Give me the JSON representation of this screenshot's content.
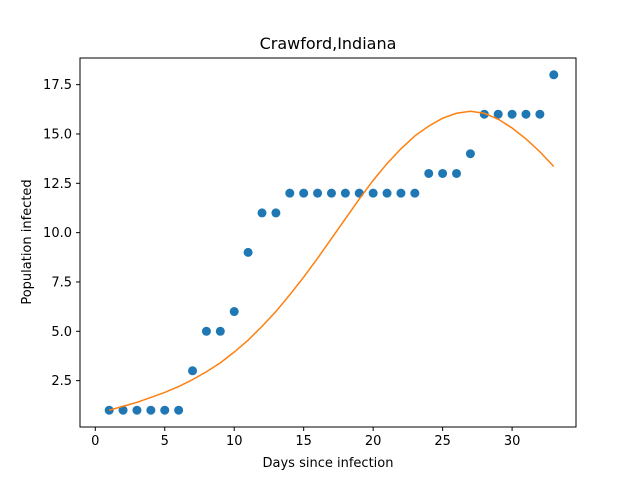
{
  "chart_data": {
    "type": "scatter",
    "title": "Crawford,Indiana",
    "xlabel": "Days since infection",
    "ylabel": "Population infected",
    "xlim": [
      -1.1,
      34.6
    ],
    "ylim": [
      0.15,
      18.85
    ],
    "xticks": [
      0,
      5,
      10,
      15,
      20,
      25,
      30
    ],
    "xtick_labels": [
      "0",
      "5",
      "10",
      "15",
      "20",
      "25",
      "30"
    ],
    "yticks": [
      2.5,
      5.0,
      7.5,
      10.0,
      12.5,
      15.0,
      17.5
    ],
    "ytick_labels": [
      "2.5",
      "5.0",
      "7.5",
      "10.0",
      "12.5",
      "15.0",
      "17.5"
    ],
    "grid": false,
    "series": [
      {
        "kind": "scatter",
        "color": "#1f77b4",
        "x": [
          1,
          2,
          3,
          4,
          5,
          6,
          7,
          8,
          9,
          10,
          11,
          12,
          13,
          14,
          15,
          16,
          17,
          18,
          19,
          20,
          21,
          22,
          23,
          24,
          25,
          26,
          27,
          28,
          29,
          30,
          31,
          32,
          33
        ],
        "y": [
          1,
          1,
          1,
          1,
          1,
          1,
          3,
          5,
          5,
          6,
          9,
          11,
          11,
          12,
          12,
          12,
          12,
          12,
          12,
          12,
          12,
          12,
          12,
          13,
          13,
          13,
          14,
          16,
          16,
          16,
          16,
          16,
          18
        ]
      },
      {
        "kind": "line",
        "color": "#ff7f0e",
        "x": [
          1,
          2,
          3,
          4,
          5,
          6,
          7,
          8,
          9,
          10,
          11,
          12,
          13,
          14,
          15,
          16,
          17,
          18,
          19,
          20,
          21,
          22,
          23,
          24,
          25,
          26,
          27,
          28,
          29,
          30,
          31,
          32,
          33
        ],
        "y": [
          1.0,
          1.2,
          1.4,
          1.65,
          1.9,
          2.2,
          2.55,
          2.95,
          3.4,
          3.95,
          4.55,
          5.25,
          6.0,
          6.85,
          7.75,
          8.7,
          9.7,
          10.7,
          11.7,
          12.65,
          13.5,
          14.25,
          14.9,
          15.4,
          15.8,
          16.05,
          16.15,
          16.05,
          15.75,
          15.3,
          14.75,
          14.1,
          13.35
        ]
      }
    ]
  }
}
